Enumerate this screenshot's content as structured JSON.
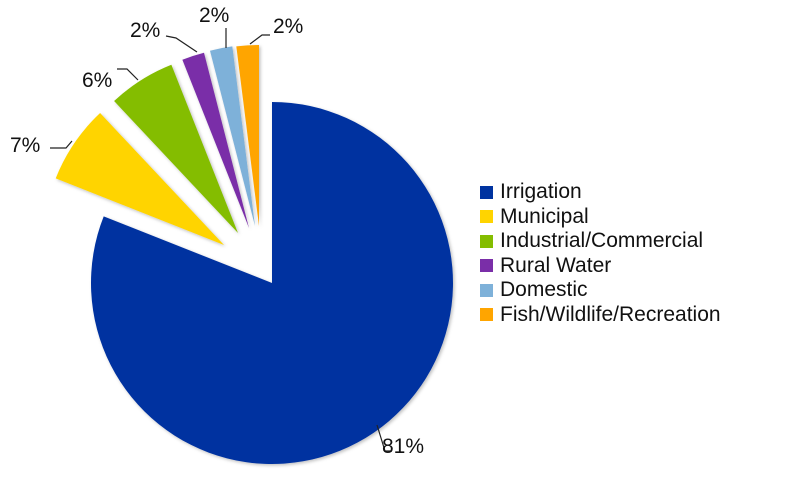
{
  "chart_data": {
    "type": "pie",
    "title": "",
    "categories": [
      "Irrigation",
      "Municipal",
      "Industrial/Commercial",
      "Rural Water",
      "Domestic",
      "Fish/Wildlife/Recreation"
    ],
    "values": [
      81,
      7,
      6,
      2,
      2,
      2
    ],
    "labels": [
      "81%",
      "7%",
      "6%",
      "2%",
      "2%",
      "2%"
    ],
    "colors": [
      "#0033A0",
      "#FFD400",
      "#84BD00",
      "#7A2EA8",
      "#7EB1D9",
      "#FFA500"
    ],
    "exploded": [
      false,
      true,
      true,
      true,
      true,
      true
    ],
    "start_angle_deg": 0,
    "direction": "clockwise",
    "legend_position": "right"
  },
  "legend": {
    "items": [
      {
        "label": "Irrigation",
        "color": "#0033A0"
      },
      {
        "label": "Municipal",
        "color": "#FFD400"
      },
      {
        "label": "Industrial/Commercial",
        "color": "#84BD00"
      },
      {
        "label": "Rural Water",
        "color": "#7A2EA8"
      },
      {
        "label": "Domestic",
        "color": "#7EB1D9"
      },
      {
        "label": "Fish/Wildlife/Recreation",
        "color": "#FFA500"
      }
    ]
  }
}
